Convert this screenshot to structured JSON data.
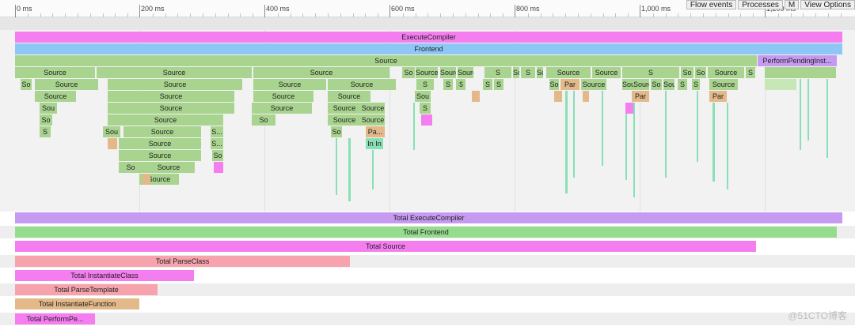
{
  "ruler": {
    "labels": [
      "0 ms",
      "200 ms",
      "400 ms",
      "600 ms",
      "800 ms",
      "1,000 ms",
      "1,200 ms"
    ]
  },
  "toolbar": {
    "flow_events": "Flow events",
    "processes": "Processes",
    "m": "M",
    "view_options": "View Options"
  },
  "colors": {
    "execute_compiler": "#f47ef0",
    "frontend": "#8ec6f5",
    "source": "#a9d48f",
    "perform_pending": "#c79af2",
    "parse_class": "#f6a3ad",
    "instantiate_class": "#f47ef0",
    "instantiate_function": "#e3b98a",
    "parse_template": "#f6a3ad",
    "green_spike": "#89e0b6",
    "total_execute": "#c79af2",
    "total_frontend": "#96dc8e",
    "total_source": "#f47ef0",
    "total_parse_class": "#f6a3ad",
    "total_instantiate_class": "#f47ef0",
    "total_parse_template": "#f6a3ad",
    "total_instantiate_function": "#e3b98a",
    "total_perform_pending": "#f47ef0"
  },
  "flame": {
    "execute_compiler": "ExecuteCompiler",
    "frontend": "Frontend",
    "source_root": "Source",
    "perform_pending": "PerformPendingInst...",
    "depth1": [
      "Source",
      "Source",
      "Source",
      "So",
      "Source",
      "Source",
      "Source",
      "S",
      "So",
      "S",
      "Source",
      "Source",
      "Source",
      "S",
      "So",
      "So",
      "Source",
      "S"
    ],
    "depth2": [
      "So",
      "Source",
      "Source",
      "Source",
      "Source",
      "S",
      "S",
      "S",
      "S",
      "S",
      "Par",
      "Source",
      "Source",
      "Source",
      "So",
      "Sou",
      "S",
      "S",
      "So",
      "Source",
      "S"
    ],
    "depth3": [
      "Source",
      "Source",
      "Source",
      "Source",
      "Sou",
      "Par",
      "Par"
    ],
    "depth4": [
      "Sou",
      "Source",
      "Source",
      "Source",
      "Source",
      "S"
    ],
    "depth5": [
      "So",
      "Source",
      "So",
      "Source",
      "Source"
    ],
    "depth6": [
      "S",
      "Sou",
      "Source",
      "S...",
      "So",
      "Pa..."
    ],
    "depth7": [
      "Source",
      "S...",
      "In In"
    ],
    "depth8": [
      "Source",
      "So"
    ],
    "depth9": [
      "So",
      "Source"
    ],
    "depth10": [
      "Source"
    ]
  },
  "totals": {
    "execute_compiler": "Total ExecuteCompiler",
    "frontend": "Total Frontend",
    "source": "Total Source",
    "parse_class": "Total ParseClass",
    "instantiate_class": "Total InstantiateClass",
    "parse_template": "Total ParseTemplate",
    "instantiate_function": "Total InstantiateFunction",
    "perform_pending": "Total PerformPe..."
  },
  "watermark": "@51CTO博客"
}
